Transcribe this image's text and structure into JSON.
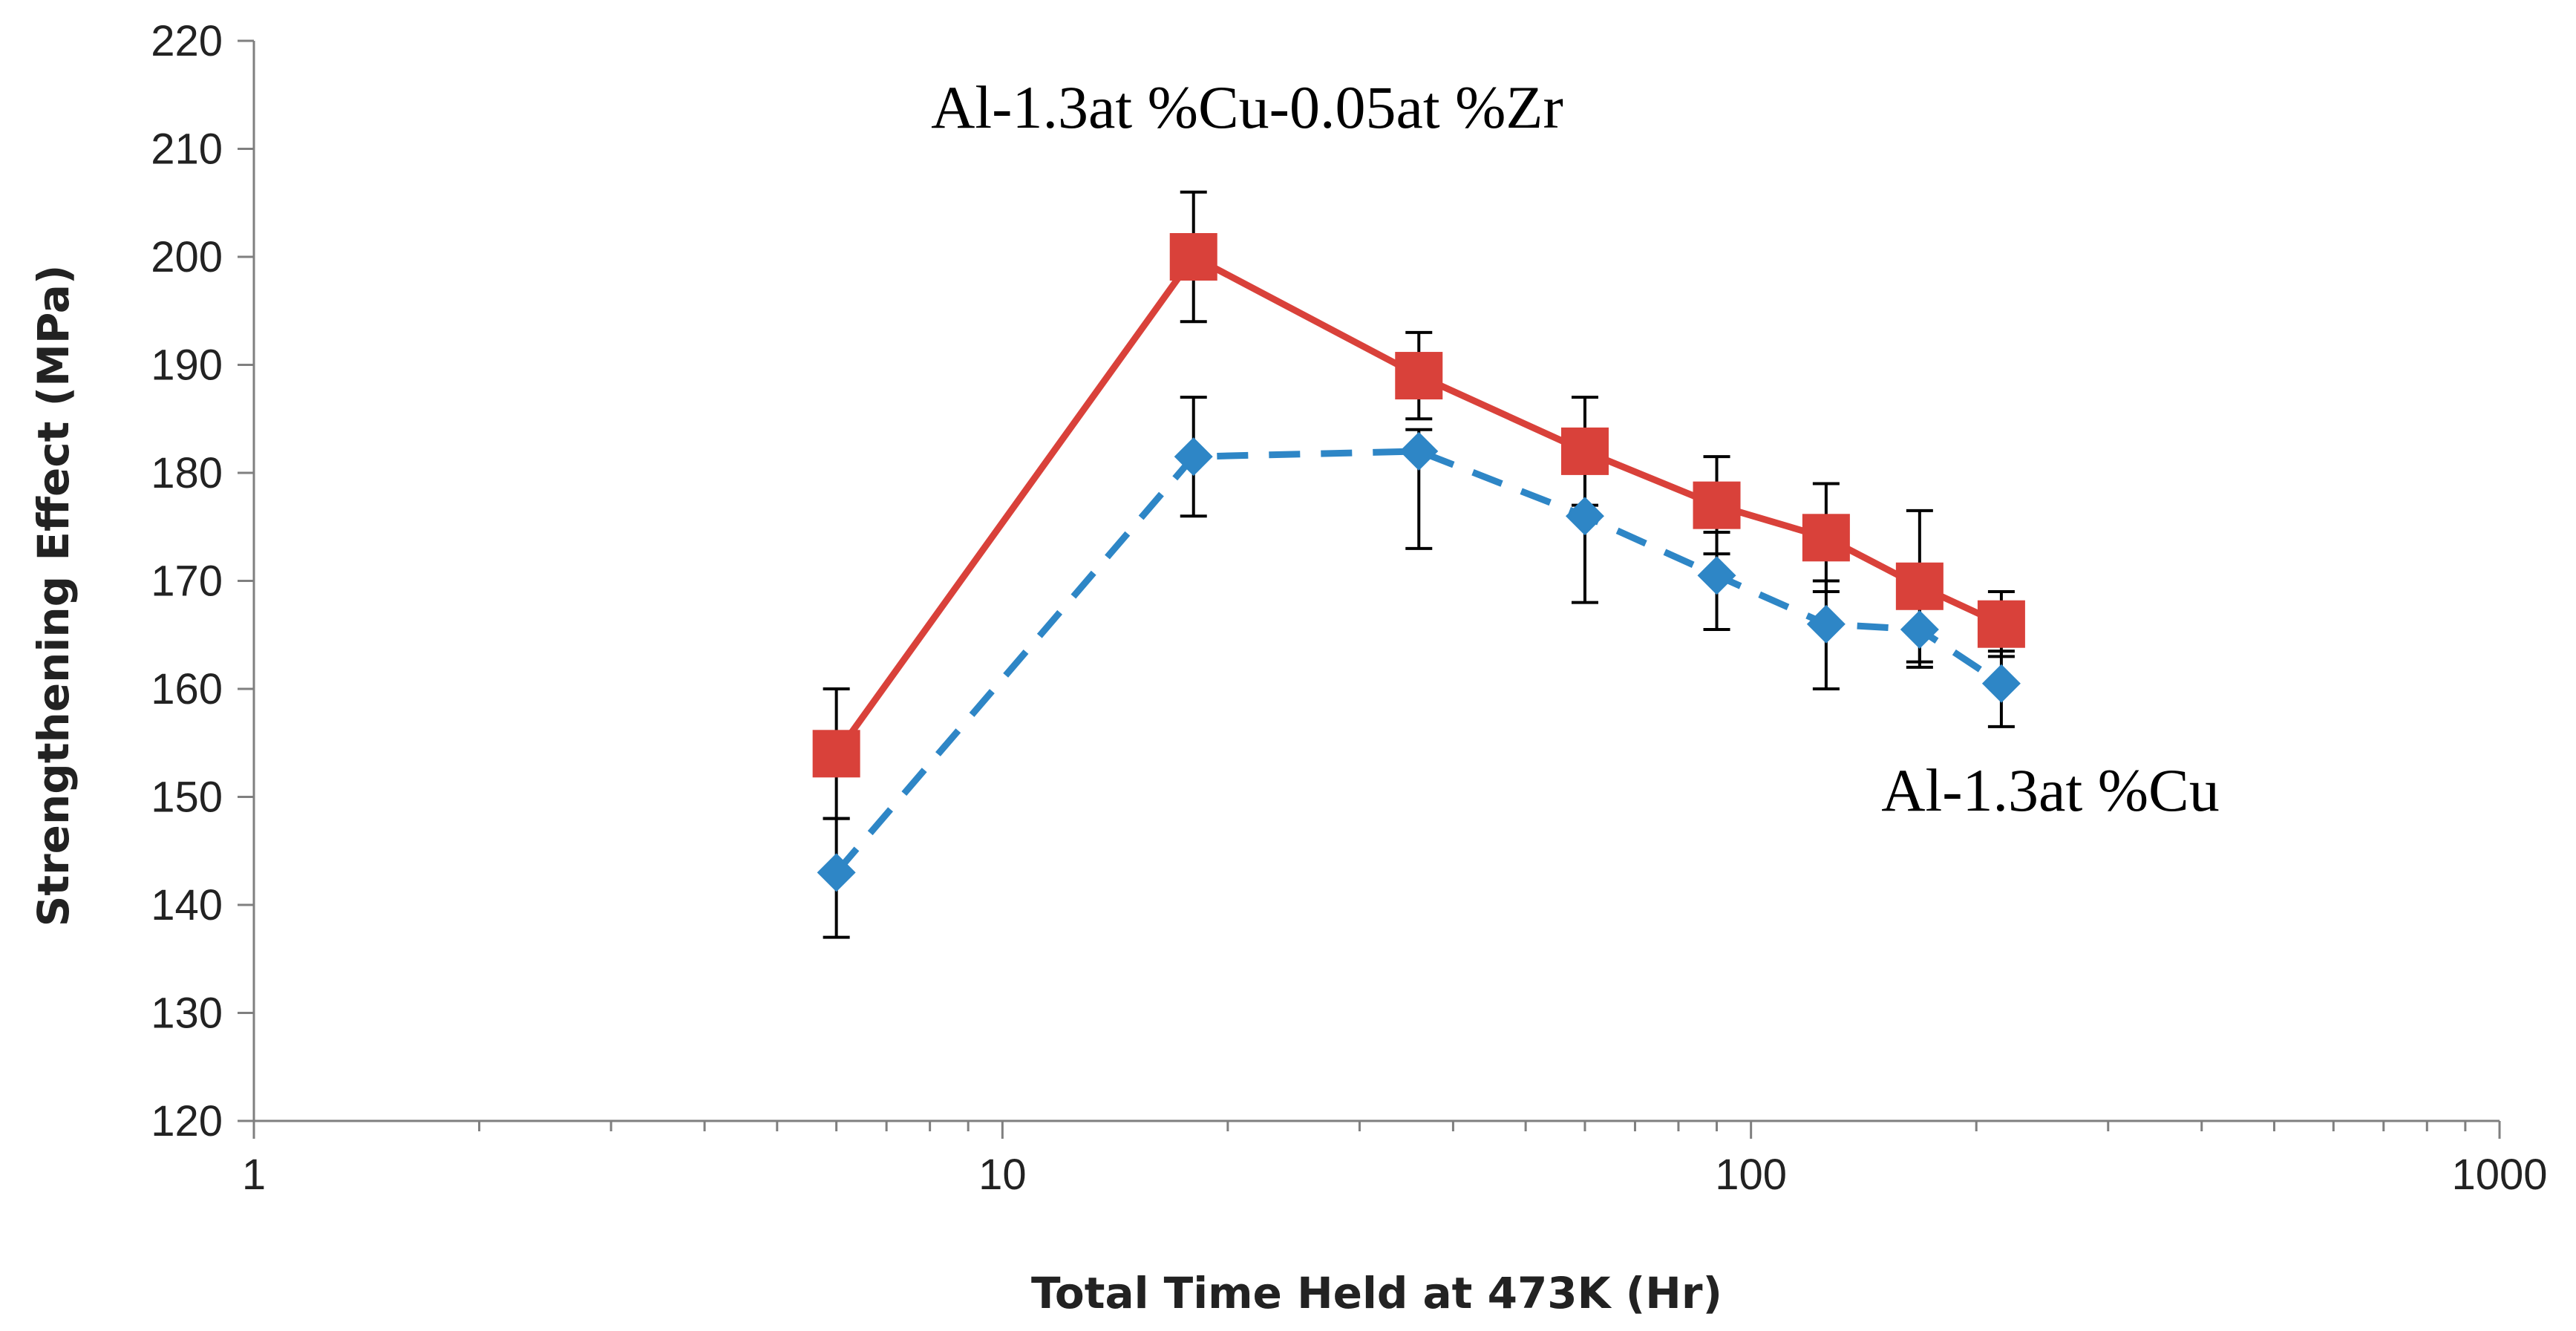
{
  "chart_data": {
    "type": "line",
    "title": "",
    "xlabel": "Total Time Held at 473K (Hr)",
    "ylabel": "Strengthening Effect (MPa)",
    "xscale": "log",
    "xlim": [
      1,
      1000
    ],
    "ylim": [
      120,
      220
    ],
    "xticks": [
      1,
      10,
      100,
      1000
    ],
    "xtick_labels": [
      "1",
      "10",
      "100",
      "1000"
    ],
    "yticks": [
      120,
      130,
      140,
      150,
      160,
      170,
      180,
      190,
      200,
      210,
      220
    ],
    "ytick_labels": [
      "120",
      "130",
      "140",
      "150",
      "160",
      "170",
      "180",
      "190",
      "200",
      "210",
      "220"
    ],
    "grid": false,
    "legend": "none",
    "series": [
      {
        "name": "Al-1.3at %Cu-0.05at %Zr",
        "color": "#d9413a",
        "line_style": "solid",
        "marker": "square",
        "x": [
          6,
          18,
          36,
          60,
          90,
          126,
          168,
          216
        ],
        "y": [
          154,
          200,
          189,
          182,
          177,
          174,
          169.5,
          166
        ],
        "err_low": [
          6,
          6,
          4,
          5,
          4.5,
          5,
          7,
          3
        ],
        "err_high": [
          6,
          6,
          4,
          5,
          4.5,
          5,
          7,
          3
        ]
      },
      {
        "name": "Al-1.3at %Cu",
        "color": "#2e86c6",
        "line_style": "dashed",
        "marker": "diamond",
        "x": [
          6,
          18,
          36,
          60,
          90,
          126,
          168,
          216
        ],
        "y": [
          143,
          181.5,
          182,
          176,
          170.5,
          166,
          165.5,
          160.5
        ],
        "err_low": [
          6,
          5.5,
          9,
          8,
          5,
          6,
          3.5,
          4
        ],
        "err_high": [
          5,
          5.5,
          2,
          4,
          4,
          4,
          4,
          3
        ]
      }
    ],
    "annotations": [
      {
        "text": "Al-1.3at %Cu-0.05at %Zr",
        "series": 0
      },
      {
        "text": "Al-1.3at %Cu",
        "series": 1
      }
    ]
  }
}
